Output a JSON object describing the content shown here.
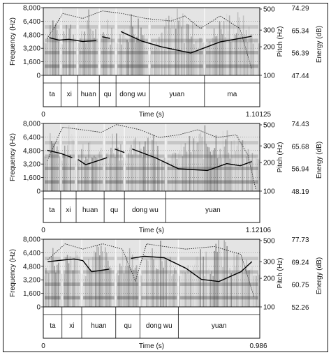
{
  "figure": {
    "frame_color": "#111111",
    "panels_count": 3
  },
  "chart_data": [
    {
      "type": "spectrogram",
      "ylabel_left": "Frequency (Hz)",
      "ylabel_pitch": "Pitch (Hz)",
      "ylabel_energy": "Energy (dB)",
      "xlabel": "Time (s)",
      "freq_ticks": [
        "8,000",
        "6,400",
        "4,800",
        "3,200",
        "1,600",
        "0"
      ],
      "pitch_ticks": [
        "500",
        "300",
        "200",
        "100"
      ],
      "energy_ticks": [
        "74.29",
        "65.34",
        "56.39",
        "47.44"
      ],
      "x_start_label": "0",
      "x_end_label": "1.10125",
      "x_range": [
        0,
        1.10125
      ],
      "syllables": [
        {
          "text": "ta",
          "start": 0,
          "end": 0.09
        },
        {
          "text": "xi",
          "start": 0.09,
          "end": 0.175
        },
        {
          "text": "huan",
          "start": 0.175,
          "end": 0.285
        },
        {
          "text": "qu",
          "start": 0.285,
          "end": 0.37
        },
        {
          "text": "dong wu",
          "start": 0.37,
          "end": 0.54
        },
        {
          "text": "yuan",
          "start": 0.54,
          "end": 0.82
        },
        {
          "text": "ma",
          "start": 0.82,
          "end": 1.10125
        }
      ],
      "pitch_contour": {
        "segments": [
          [
            [
              0.03,
              250
            ],
            [
              0.08,
              235
            ],
            [
              0.13,
              240
            ],
            [
              0.2,
              228
            ],
            [
              0.27,
              232
            ]
          ],
          [
            [
              0.3,
              255
            ],
            [
              0.34,
              245
            ]
          ],
          [
            [
              0.395,
              290
            ],
            [
              0.5,
              230
            ],
            [
              0.6,
              200
            ],
            [
              0.75,
              172
            ],
            [
              0.9,
              225
            ],
            [
              1.06,
              258
            ]
          ]
        ],
        "unit": "Hz"
      },
      "energy_contour": {
        "points": [
          [
            0.02,
            62
          ],
          [
            0.1,
            72
          ],
          [
            0.2,
            70
          ],
          [
            0.3,
            73
          ],
          [
            0.4,
            72
          ],
          [
            0.52,
            70
          ],
          [
            0.65,
            69
          ],
          [
            0.72,
            71
          ],
          [
            0.8,
            66
          ],
          [
            0.9,
            71
          ],
          [
            1.0,
            66
          ],
          [
            1.06,
            50
          ]
        ],
        "unit": "dB"
      }
    },
    {
      "type": "spectrogram",
      "ylabel_left": "Frequency (Hz)",
      "ylabel_pitch": "Pitch (Hz)",
      "ylabel_energy": "Energy (dB)",
      "xlabel": "Time (s)",
      "freq_ticks": [
        "8,000",
        "6,400",
        "4,800",
        "3,200",
        "1,600",
        "0"
      ],
      "pitch_ticks": [
        "500",
        "300",
        "200",
        "100"
      ],
      "energy_ticks": [
        "74.43",
        "65.68",
        "56.94",
        "48.19"
      ],
      "x_start_label": "0",
      "x_end_label": "1.12106",
      "x_range": [
        0,
        1.12106
      ],
      "syllables": [
        {
          "text": "ta",
          "start": 0,
          "end": 0.09
        },
        {
          "text": "xi",
          "start": 0.09,
          "end": 0.17
        },
        {
          "text": "huan",
          "start": 0.17,
          "end": 0.315
        },
        {
          "text": "qu",
          "start": 0.315,
          "end": 0.42
        },
        {
          "text": "dong wu",
          "start": 0.42,
          "end": 0.635
        },
        {
          "text": "yuan",
          "start": 0.635,
          "end": 1.12106
        }
      ],
      "pitch_contour": {
        "segments": [
          [
            [
              0.02,
              270
            ],
            [
              0.09,
              250
            ],
            [
              0.15,
              225
            ]
          ],
          [
            [
              0.18,
              215
            ],
            [
              0.22,
              190
            ],
            [
              0.27,
              205
            ],
            [
              0.33,
              225
            ]
          ],
          [
            [
              0.37,
              278
            ],
            [
              0.42,
              255
            ]
          ],
          [
            [
              0.46,
              278
            ],
            [
              0.58,
              225
            ],
            [
              0.7,
              172
            ],
            [
              0.85,
              165
            ],
            [
              0.95,
              195
            ],
            [
              1.02,
              185
            ],
            [
              1.08,
              205
            ]
          ]
        ],
        "unit": "Hz"
      },
      "energy_contour": {
        "points": [
          [
            0.02,
            60
          ],
          [
            0.1,
            73
          ],
          [
            0.2,
            72
          ],
          [
            0.3,
            71
          ],
          [
            0.38,
            74
          ],
          [
            0.5,
            72
          ],
          [
            0.6,
            69
          ],
          [
            0.7,
            70
          ],
          [
            0.8,
            72
          ],
          [
            0.9,
            69
          ],
          [
            1.0,
            70
          ],
          [
            1.06,
            62
          ],
          [
            1.1,
            49
          ]
        ],
        "unit": "dB"
      }
    },
    {
      "type": "spectrogram",
      "ylabel_left": "Frequency (Hz)",
      "ylabel_pitch": "Pitch (Hz)",
      "ylabel_energy": "Energy (dB)",
      "xlabel": "Time (s)",
      "freq_ticks": [
        "8,000",
        "6,400",
        "4,800",
        "3,200",
        "1,600",
        "0"
      ],
      "pitch_ticks": [
        "500",
        "300",
        "200",
        "100"
      ],
      "energy_ticks": [
        "77.73",
        "69.24",
        "60.75",
        "52.26"
      ],
      "x_start_label": "0",
      "x_end_label": "0.986",
      "x_range": [
        0,
        0.986
      ],
      "syllables": [
        {
          "text": "ta",
          "start": 0,
          "end": 0.085
        },
        {
          "text": "xi",
          "start": 0.085,
          "end": 0.175
        },
        {
          "text": "huan",
          "start": 0.175,
          "end": 0.33
        },
        {
          "text": "qu",
          "start": 0.33,
          "end": 0.44
        },
        {
          "text": "dong wu",
          "start": 0.44,
          "end": 0.615
        },
        {
          "text": "yuan",
          "start": 0.615,
          "end": 0.986
        }
      ],
      "pitch_contour": {
        "segments": [
          [
            [
              0.02,
              300
            ],
            [
              0.08,
              310
            ],
            [
              0.14,
              320
            ],
            [
              0.18,
              308
            ],
            [
              0.22,
              235
            ],
            [
              0.3,
              250
            ]
          ],
          [
            [
              0.4,
              325
            ],
            [
              0.46,
              342
            ],
            [
              0.55,
              330
            ],
            [
              0.65,
              255
            ],
            [
              0.72,
              195
            ],
            [
              0.8,
              185
            ],
            [
              0.9,
              235
            ],
            [
              0.95,
              300
            ]
          ]
        ],
        "unit": "Hz"
      },
      "energy_contour": {
        "points": [
          [
            0.02,
            70
          ],
          [
            0.1,
            76
          ],
          [
            0.18,
            74
          ],
          [
            0.27,
            76
          ],
          [
            0.36,
            74
          ],
          [
            0.42,
            62
          ],
          [
            0.47,
            76
          ],
          [
            0.55,
            75
          ],
          [
            0.65,
            74
          ],
          [
            0.78,
            75
          ],
          [
            0.9,
            72
          ],
          [
            0.96,
            56
          ]
        ],
        "unit": "dB"
      }
    }
  ]
}
